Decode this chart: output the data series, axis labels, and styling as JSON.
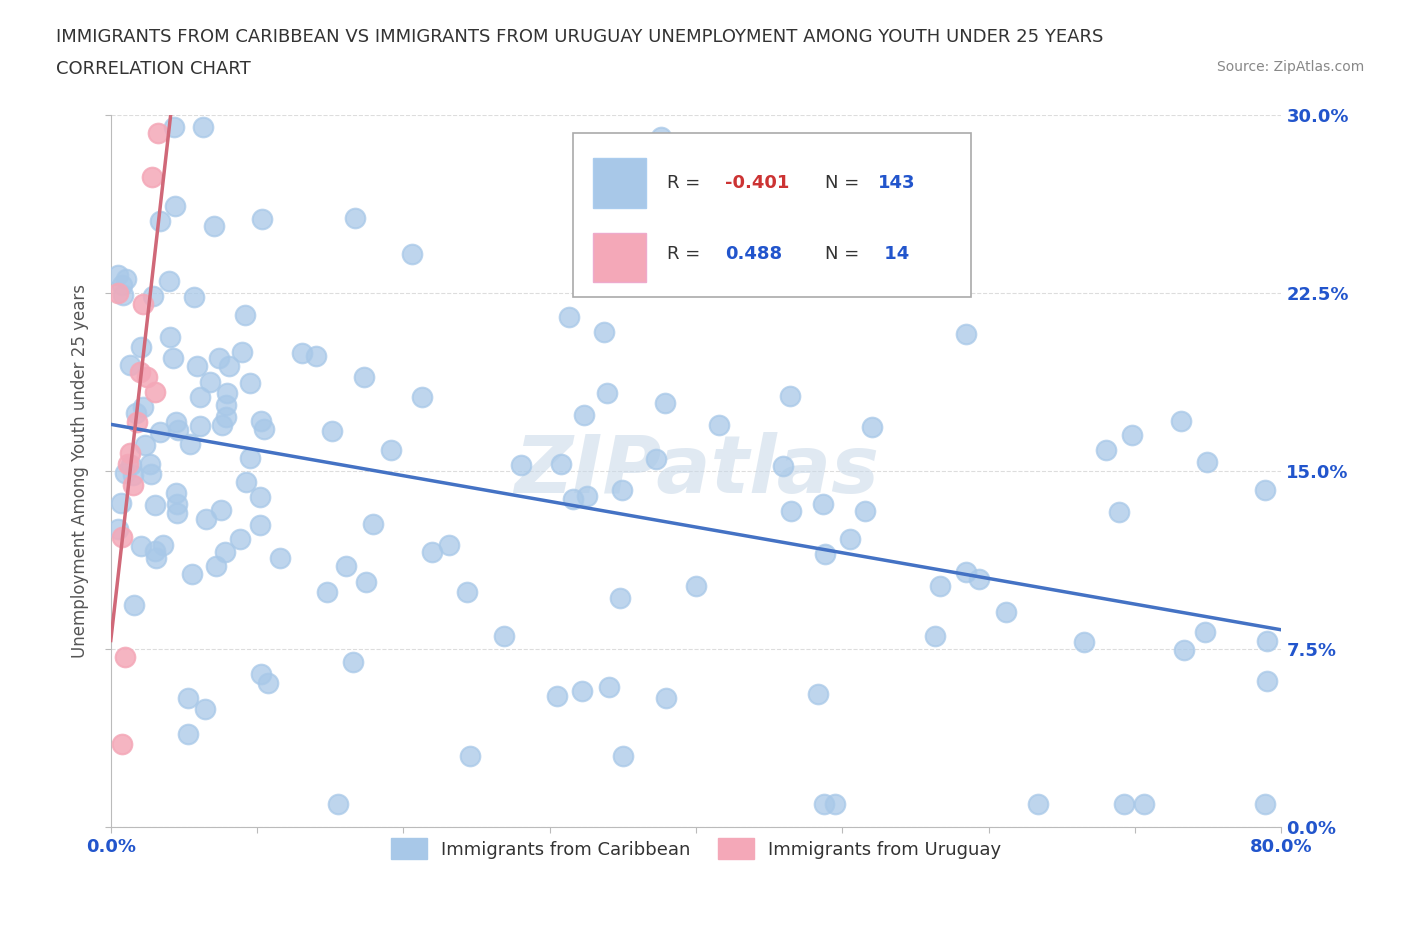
{
  "title_line1": "IMMIGRANTS FROM CARIBBEAN VS IMMIGRANTS FROM URUGUAY UNEMPLOYMENT AMONG YOUTH UNDER 25 YEARS",
  "title_line2": "CORRELATION CHART",
  "source_text": "Source: ZipAtlas.com",
  "ylabel": "Unemployment Among Youth under 25 years",
  "xlim": [
    0.0,
    0.8
  ],
  "ylim": [
    0.0,
    0.3
  ],
  "xticks": [
    0.0,
    0.1,
    0.2,
    0.3,
    0.4,
    0.5,
    0.6,
    0.7,
    0.8
  ],
  "xticklabels_ends": [
    "0.0%",
    "80.0%"
  ],
  "yticks": [
    0.0,
    0.075,
    0.15,
    0.225,
    0.3
  ],
  "yticklabels": [
    "0.0%",
    "7.5%",
    "15.0%",
    "22.5%",
    "30.0%"
  ],
  "caribbean_color": "#a8c8e8",
  "uruguay_color": "#f4a8b8",
  "caribbean_line_color": "#4472c4",
  "uruguay_line_color": "#d06878",
  "watermark": "ZIPatlas",
  "watermark_color": "#c8d8e8",
  "legend_label_caribbean": "Immigrants from Caribbean",
  "legend_label_uruguay": "Immigrants from Uruguay",
  "r_text_color": "#333333",
  "r_neg_color": "#cc3333",
  "n_color": "#2255cc",
  "title_color": "#333333",
  "source_color": "#888888",
  "axis_label_color": "#555555",
  "grid_color": "#dddddd"
}
